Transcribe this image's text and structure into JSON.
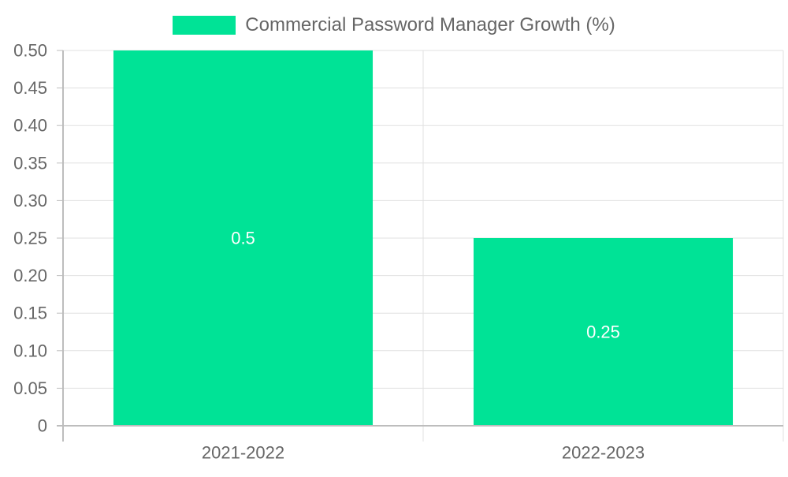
{
  "chart_data": {
    "type": "bar",
    "categories": [
      "2021-2022",
      "2022-2023"
    ],
    "series": [
      {
        "name": "Commercial Password Manager Growth (%)",
        "values": [
          0.5,
          0.25
        ],
        "data_labels": [
          "0.5",
          "0.25"
        ]
      }
    ],
    "ylim": [
      0,
      0.5
    ],
    "y_ticks": [
      "0",
      "0.05",
      "0.10",
      "0.15",
      "0.20",
      "0.25",
      "0.30",
      "0.35",
      "0.40",
      "0.45",
      "0.50"
    ],
    "y_tick_values": [
      0,
      0.05,
      0.1,
      0.15,
      0.2,
      0.25,
      0.3,
      0.35,
      0.4,
      0.45,
      0.5
    ],
    "grid": true,
    "legend_position": "top",
    "colors": {
      "bar": "#00E396",
      "grid": "#e0e0e0",
      "axis": "#bdbdbd",
      "tick_text": "#666666",
      "data_label": "#ffffff"
    }
  }
}
